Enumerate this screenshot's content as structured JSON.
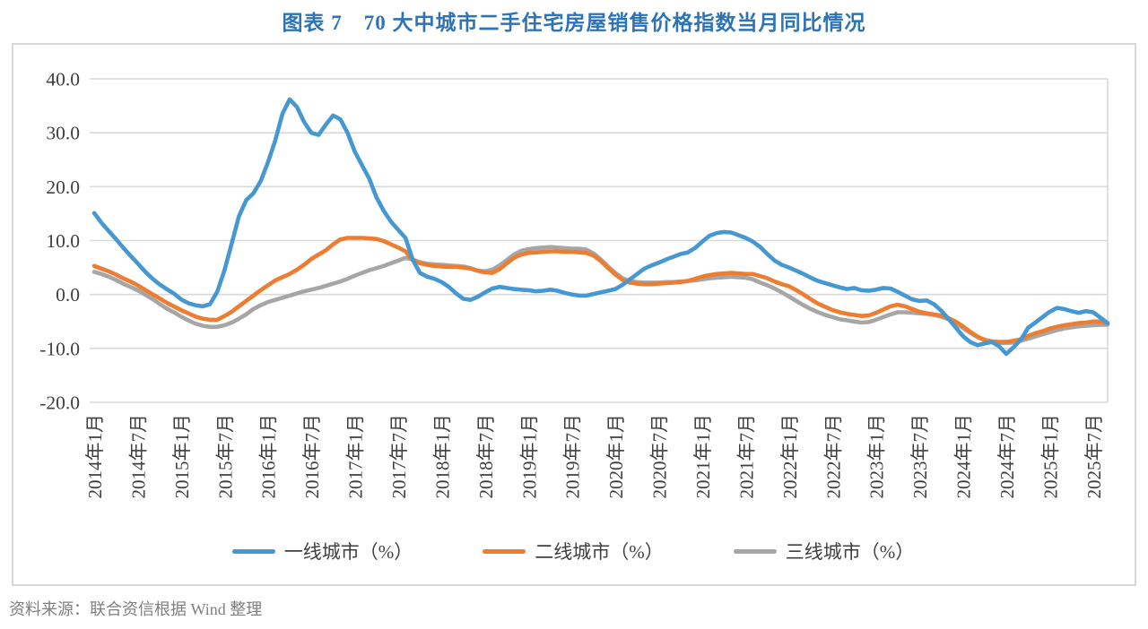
{
  "page": {
    "title": "图表 7　70 大中城市二手住宅房屋销售价格指数当月同比情况",
    "source_note": "资料来源：联合资信根据 Wind 整理"
  },
  "chart_data": {
    "type": "line",
    "title": "70 大中城市二手住宅房屋销售价格指数当月同比情况",
    "unit": "%",
    "grid": "horizontal",
    "legend_position": "bottom",
    "ylim": [
      -20,
      40
    ],
    "y_tick_step": 10,
    "y_tick_labels": [
      "40.0",
      "30.0",
      "20.0",
      "10.0",
      "0.0",
      "-10.0",
      "-20.0"
    ],
    "x_tick_interval": 6,
    "x_tick_labels": [
      "2014年1月",
      "2014年7月",
      "2015年1月",
      "2015年7月",
      "2016年1月",
      "2016年7月",
      "2017年1月",
      "2017年7月",
      "2018年1月",
      "2018年7月",
      "2019年1月",
      "2019年7月",
      "2020年1月",
      "2020年7月",
      "2021年1月",
      "2021年7月",
      "2022年1月",
      "2022年7月",
      "2023年1月",
      "2023年7月",
      "2024年1月",
      "2024年7月",
      "2025年1月",
      "2025年7月"
    ],
    "x_range_note": "monthly points from 2014年1月 to 2025年9月",
    "colors": {
      "grid": "#D9D9D9",
      "axis_text": "#3F3F3F",
      "border": "#D8D8D8"
    },
    "series": [
      {
        "name": "一线城市（%）",
        "color": "#4698D2",
        "values": [
          15.1,
          13.3,
          11.8,
          10.3,
          8.7,
          7.2,
          5.8,
          4.3,
          3.0,
          1.9,
          1.0,
          0.2,
          -0.9,
          -1.6,
          -2.0,
          -2.2,
          -1.8,
          0.5,
          4.5,
          9.5,
          14.5,
          17.5,
          18.8,
          21.0,
          24.5,
          28.5,
          33.5,
          36.2,
          34.8,
          32.0,
          30.0,
          29.6,
          31.5,
          33.2,
          32.5,
          30.0,
          26.5,
          24.0,
          21.5,
          18.0,
          15.5,
          13.5,
          12.0,
          10.5,
          6.5,
          4.0,
          3.3,
          2.9,
          2.3,
          1.4,
          0.2,
          -0.8,
          -1.0,
          -0.4,
          0.4,
          1.1,
          1.4,
          1.2,
          1.0,
          0.9,
          0.8,
          0.6,
          0.7,
          0.9,
          0.7,
          0.3,
          0.0,
          -0.2,
          -0.2,
          0.1,
          0.4,
          0.7,
          1.0,
          1.8,
          2.8,
          3.8,
          4.8,
          5.4,
          5.9,
          6.5,
          7.0,
          7.5,
          7.8,
          8.6,
          9.8,
          10.9,
          11.4,
          11.6,
          11.5,
          11.0,
          10.5,
          9.8,
          8.8,
          7.5,
          6.3,
          5.5,
          5.0,
          4.4,
          3.8,
          3.1,
          2.5,
          2.1,
          1.7,
          1.3,
          1.0,
          1.2,
          0.8,
          0.7,
          0.9,
          1.2,
          1.1,
          0.5,
          -0.2,
          -0.9,
          -1.2,
          -1.1,
          -1.8,
          -3.0,
          -4.5,
          -6.1,
          -7.7,
          -8.8,
          -9.4,
          -9.1,
          -8.8,
          -9.6,
          -11.0,
          -9.8,
          -8.4,
          -6.2,
          -5.2,
          -4.2,
          -3.2,
          -2.5,
          -2.7,
          -3.1,
          -3.4,
          -3.1,
          -3.3,
          -4.3,
          -5.3
        ]
      },
      {
        "name": "二线城市（%）",
        "color": "#ED7D31",
        "values": [
          5.3,
          4.8,
          4.3,
          3.7,
          3.0,
          2.4,
          1.7,
          0.9,
          0.1,
          -0.7,
          -1.5,
          -2.2,
          -2.9,
          -3.5,
          -4.1,
          -4.5,
          -4.7,
          -4.7,
          -4.0,
          -3.2,
          -2.2,
          -1.2,
          -0.2,
          0.8,
          1.7,
          2.6,
          3.2,
          3.8,
          4.6,
          5.5,
          6.6,
          7.4,
          8.2,
          9.3,
          10.2,
          10.5,
          10.5,
          10.5,
          10.4,
          10.3,
          9.9,
          9.3,
          8.7,
          8.0,
          6.4,
          5.8,
          5.5,
          5.3,
          5.2,
          5.1,
          5.1,
          5.0,
          4.8,
          4.4,
          4.1,
          4.0,
          4.7,
          5.8,
          6.8,
          7.4,
          7.7,
          7.8,
          7.9,
          8.0,
          8.0,
          7.9,
          7.9,
          7.8,
          7.7,
          7.2,
          6.2,
          4.9,
          3.7,
          2.7,
          2.2,
          2.0,
          1.9,
          1.9,
          2.0,
          2.1,
          2.2,
          2.3,
          2.5,
          2.9,
          3.3,
          3.6,
          3.8,
          3.9,
          4.0,
          3.9,
          3.8,
          3.8,
          3.4,
          3.0,
          2.4,
          1.9,
          1.5,
          0.8,
          0.0,
          -0.9,
          -1.7,
          -2.3,
          -2.9,
          -3.3,
          -3.6,
          -3.8,
          -4.0,
          -3.9,
          -3.4,
          -2.8,
          -2.2,
          -1.9,
          -2.2,
          -2.7,
          -3.2,
          -3.5,
          -3.7,
          -3.9,
          -4.4,
          -5.0,
          -5.9,
          -6.9,
          -7.8,
          -8.4,
          -8.7,
          -8.8,
          -8.8,
          -8.6,
          -8.3,
          -7.7,
          -7.2,
          -6.8,
          -6.3,
          -6.0,
          -5.7,
          -5.5,
          -5.3,
          -5.2,
          -5.0,
          -5.0,
          -5.3
        ]
      },
      {
        "name": "三线城市（%）",
        "color": "#A6A6A6",
        "values": [
          4.2,
          3.8,
          3.3,
          2.7,
          2.0,
          1.4,
          0.8,
          0.0,
          -0.8,
          -1.7,
          -2.6,
          -3.3,
          -4.1,
          -4.8,
          -5.4,
          -5.8,
          -6.0,
          -6.0,
          -5.7,
          -5.2,
          -4.5,
          -3.7,
          -2.7,
          -2.0,
          -1.4,
          -1.0,
          -0.6,
          -0.2,
          0.2,
          0.6,
          0.9,
          1.2,
          1.6,
          2.0,
          2.4,
          2.9,
          3.5,
          4.0,
          4.5,
          4.9,
          5.3,
          5.8,
          6.3,
          6.8,
          6.5,
          6.0,
          5.7,
          5.6,
          5.5,
          5.4,
          5.3,
          5.2,
          4.9,
          4.4,
          4.3,
          4.6,
          5.4,
          6.4,
          7.4,
          8.1,
          8.4,
          8.6,
          8.7,
          8.8,
          8.7,
          8.6,
          8.5,
          8.5,
          8.3,
          7.6,
          6.5,
          5.2,
          4.0,
          3.0,
          2.5,
          2.3,
          2.2,
          2.2,
          2.2,
          2.3,
          2.3,
          2.4,
          2.5,
          2.6,
          2.8,
          3.0,
          3.1,
          3.2,
          3.3,
          3.2,
          3.1,
          2.8,
          2.2,
          1.7,
          1.1,
          0.4,
          -0.4,
          -1.2,
          -2.0,
          -2.7,
          -3.3,
          -3.8,
          -4.2,
          -4.6,
          -4.8,
          -5.0,
          -5.2,
          -5.1,
          -4.7,
          -4.2,
          -3.7,
          -3.3,
          -3.3,
          -3.4,
          -3.5,
          -3.6,
          -3.8,
          -4.1,
          -4.6,
          -5.3,
          -6.2,
          -7.1,
          -7.9,
          -8.5,
          -8.8,
          -9.0,
          -9.0,
          -8.9,
          -8.6,
          -8.2,
          -7.8,
          -7.4,
          -7.0,
          -6.6,
          -6.3,
          -6.1,
          -5.9,
          -5.8,
          -5.7,
          -5.6,
          -5.6
        ]
      }
    ]
  }
}
